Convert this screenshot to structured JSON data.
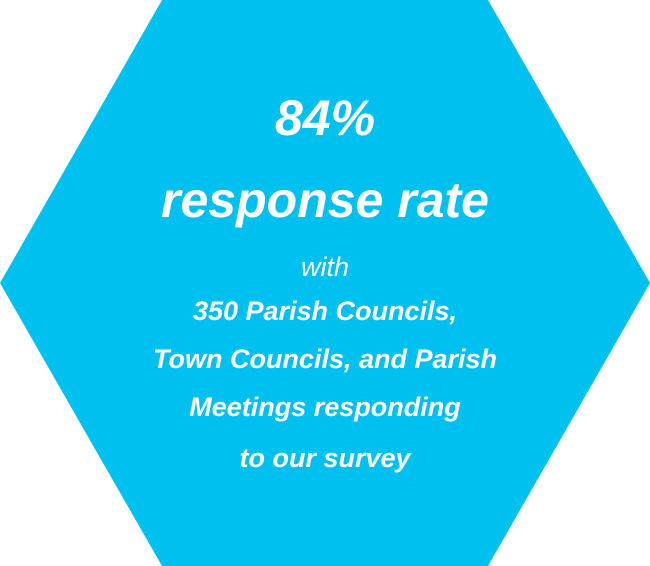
{
  "infographic": {
    "shape_color": "#00c0ef",
    "text_color": "#ffffff",
    "stat": "84%",
    "headline": "response rate",
    "connector": "with",
    "detail_lines": [
      "350 Parish Councils,",
      "Town Councils, and Parish",
      "Meetings responding",
      "to our survey"
    ]
  }
}
